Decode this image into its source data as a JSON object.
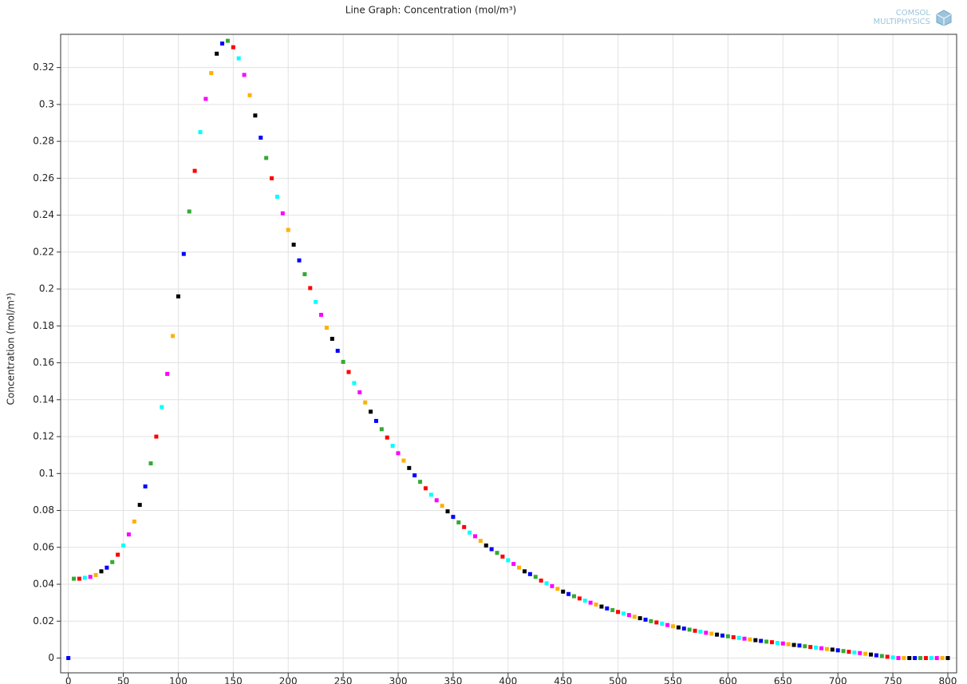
{
  "chart_data": {
    "type": "line",
    "title": "Line Graph: Concentration (mol/m³)",
    "ylabel": "Concentration (mol/m³)",
    "logo": [
      "COMSOL",
      "MULTIPHYSICS"
    ],
    "show_line": false,
    "marker_colors": [
      "#0000ff",
      "#33aa33",
      "#ff0000",
      "#00ffff",
      "#ff00ff",
      "#ffb000",
      "#000000"
    ],
    "grid": true,
    "xlim": [
      -7,
      808
    ],
    "ylim": [
      -0.008,
      0.338
    ],
    "xticks": [
      0,
      50,
      100,
      150,
      200,
      250,
      300,
      350,
      400,
      450,
      500,
      550,
      600,
      650,
      700,
      750,
      800
    ],
    "yticks": [
      0,
      0.02,
      0.04,
      0.06,
      0.08,
      0.1,
      0.12,
      0.14,
      0.16,
      0.18,
      0.2,
      0.22,
      0.24,
      0.26,
      0.28,
      0.3,
      0.32
    ],
    "x": [
      0,
      5,
      10,
      15,
      20,
      25,
      30,
      35,
      40,
      45,
      50,
      55,
      60,
      65,
      70,
      75,
      80,
      85,
      90,
      95,
      100,
      105,
      110,
      115,
      120,
      125,
      130,
      135,
      140,
      145,
      150,
      155,
      160,
      165,
      170,
      175,
      180,
      185,
      190,
      195,
      200,
      205,
      210,
      215,
      220,
      225,
      230,
      235,
      240,
      245,
      250,
      255,
      260,
      265,
      270,
      275,
      280,
      285,
      290,
      295,
      300,
      305,
      310,
      315,
      320,
      325,
      330,
      335,
      340,
      345,
      350,
      355,
      360,
      365,
      370,
      375,
      380,
      385,
      390,
      395,
      400,
      405,
      410,
      415,
      420,
      425,
      430,
      435,
      440,
      445,
      450,
      455,
      460,
      465,
      470,
      475,
      480,
      485,
      490,
      495,
      500,
      505,
      510,
      515,
      520,
      525,
      530,
      535,
      540,
      545,
      550,
      555,
      560,
      565,
      570,
      575,
      580,
      585,
      590,
      595,
      600,
      605,
      610,
      615,
      620,
      625,
      630,
      635,
      640,
      645,
      650,
      655,
      660,
      665,
      670,
      675,
      680,
      685,
      690,
      695,
      700,
      705,
      710,
      715,
      720,
      725,
      730,
      735,
      740,
      745,
      750,
      755,
      760,
      765,
      770,
      775,
      780,
      785,
      790,
      795,
      800
    ],
    "values": [
      0,
      0.043,
      0.043,
      0.0435,
      0.044,
      0.045,
      0.047,
      0.049,
      0.052,
      0.056,
      0.061,
      0.067,
      0.074,
      0.083,
      0.093,
      0.1055,
      0.12,
      0.136,
      0.154,
      0.1745,
      0.196,
      0.219,
      0.242,
      0.264,
      0.285,
      0.303,
      0.317,
      0.3275,
      0.333,
      0.3345,
      0.331,
      0.325,
      0.316,
      0.305,
      0.294,
      0.282,
      0.271,
      0.26,
      0.25,
      0.241,
      0.232,
      0.224,
      0.2155,
      0.208,
      0.2005,
      0.193,
      0.186,
      0.179,
      0.173,
      0.1665,
      0.1605,
      0.155,
      0.149,
      0.144,
      0.1385,
      0.1335,
      0.1285,
      0.124,
      0.1195,
      0.115,
      0.111,
      0.107,
      0.103,
      0.099,
      0.0955,
      0.092,
      0.0885,
      0.0855,
      0.0825,
      0.0795,
      0.0765,
      0.0735,
      0.071,
      0.068,
      0.066,
      0.0635,
      0.061,
      0.059,
      0.057,
      0.055,
      0.053,
      0.051,
      0.049,
      0.047,
      0.0455,
      0.044,
      0.042,
      0.0405,
      0.039,
      0.0375,
      0.036,
      0.0347,
      0.0335,
      0.0323,
      0.0311,
      0.03,
      0.029,
      0.0279,
      0.0269,
      0.026,
      0.025,
      0.0241,
      0.0233,
      0.0224,
      0.0216,
      0.0208,
      0.02,
      0.0193,
      0.0186,
      0.0179,
      0.0172,
      0.0166,
      0.016,
      0.0154,
      0.0148,
      0.0143,
      0.0137,
      0.0132,
      0.0127,
      0.0122,
      0.0118,
      0.0113,
      0.0109,
      0.0105,
      0.0101,
      0.0097,
      0.0093,
      0.0089,
      0.0086,
      0.0082,
      0.0079,
      0.0075,
      0.0071,
      0.0068,
      0.0064,
      0.006,
      0.0057,
      0.0053,
      0.0049,
      0.0046,
      0.0042,
      0.0038,
      0.0034,
      0.003,
      0.0027,
      0.0023,
      0.0019,
      0.0015,
      0.0011,
      0.0007,
      0.0003,
      0,
      0,
      0,
      0,
      0,
      0,
      0,
      0,
      0,
      0
    ]
  }
}
